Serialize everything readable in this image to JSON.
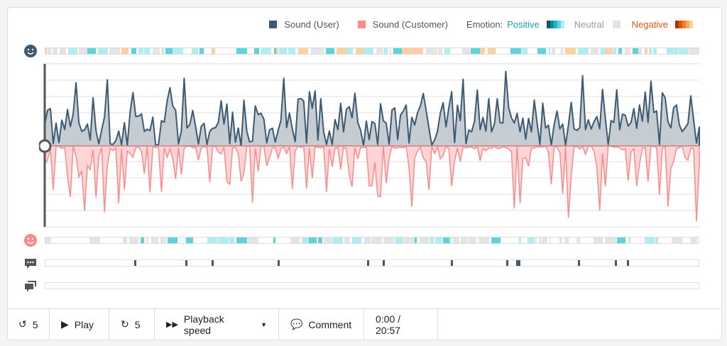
{
  "legend": {
    "user": "Sound (User)",
    "customer": "Sound (Customer)",
    "emotion_label": "Emotion:",
    "positive": "Positive",
    "neutral": "Neutral",
    "negative": "Negative"
  },
  "colors": {
    "user": "#3d5a73",
    "user_fill": "#c5cdd3",
    "customer": "#f98b8b",
    "customer_fill": "#fdd5d5",
    "positive": "#17a2b0",
    "neutral": "#e4e4e4",
    "negative": "#e0560f"
  },
  "icons": {
    "user_emotion": "smiley-icon",
    "customer_emotion": "smiley-icon",
    "comments": "speech-bubble-dots-icon",
    "conversation": "speech-bubbles-icon"
  },
  "footer": {
    "rewind": "5",
    "play": "Play",
    "forward": "5",
    "speed": "Playback speed",
    "comment": "Comment",
    "time": "0:00 / 20:57"
  }
}
